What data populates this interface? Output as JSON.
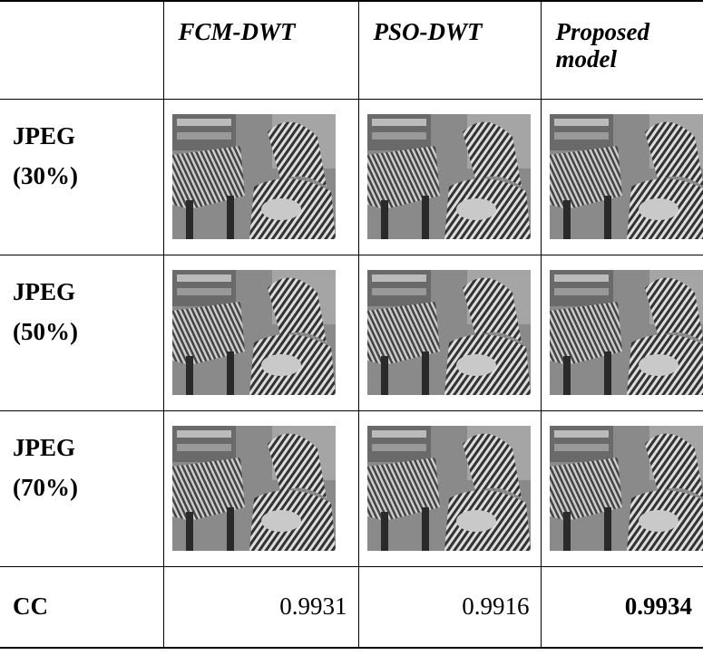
{
  "table": {
    "header": [
      "FCM-DWT",
      "PSO-DWT",
      "Proposed model"
    ],
    "rows": [
      {
        "label": "JPEG (30%)"
      },
      {
        "label": "JPEG (50%)"
      },
      {
        "label": "JPEG (70%)"
      }
    ],
    "cc": {
      "label": "CC",
      "values": [
        0.9931,
        0.9916,
        0.9934
      ]
    }
  }
}
